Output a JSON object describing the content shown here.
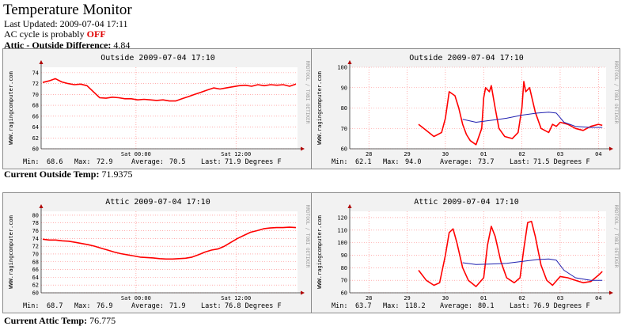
{
  "page": {
    "title": "Temperature Monitor",
    "last_updated_label": "Last Updated:",
    "last_updated": "2009-07-04 17:11",
    "ac_prefix": "AC cycle is probably",
    "ac_status": "OFF",
    "difference_label": "Attic - Outside Difference:",
    "difference_value": "4.84",
    "current_outside_label": "Current Outside Temp:",
    "current_outside_value": "71.9375",
    "current_attic_label": "Current Attic Temp:",
    "current_attic_value": "76.775"
  },
  "colors": {
    "line": "#ff0000",
    "second_line": "#2020b0",
    "grid": "#ff7f7f",
    "frame": "#8c8c8c"
  },
  "graph_labels": {
    "left": "WWW.ragingcomputer.com",
    "right": "RRDTOOL / TOBI OETIKER"
  },
  "chart_data": [
    {
      "type": "line",
      "title": "Outside 2009-07-04 17:10",
      "x_ticks": [
        "Sat 00:00",
        "Sat 12:00"
      ],
      "y_ticks": [
        60,
        62,
        64,
        66,
        68,
        70,
        72,
        74
      ],
      "ylim": [
        60,
        75
      ],
      "grid": true,
      "footer": {
        "min_label": "Min:",
        "min": "68.6",
        "max_label": "Max:",
        "max": "72.9",
        "avg_label": "Average:",
        "avg": "70.5",
        "last_label": "Last:",
        "last": "71.9 Degrees F"
      },
      "series": [
        {
          "values": [
            72.2,
            72.5,
            72.9,
            72.3,
            72.0,
            71.8,
            71.9,
            71.6,
            70.5,
            69.4,
            69.3,
            69.5,
            69.4,
            69.2,
            69.2,
            69.0,
            69.1,
            69.0,
            68.9,
            69.0,
            68.8,
            68.8,
            69.2,
            69.6,
            70.0,
            70.4,
            70.8,
            71.2,
            71.0,
            71.2,
            71.4,
            71.6,
            71.7,
            71.5,
            71.8,
            71.6,
            71.8,
            71.7,
            71.8,
            71.5,
            71.9
          ]
        }
      ]
    },
    {
      "type": "line",
      "title": "Outside 2009-07-04 17:10",
      "x_ticks": [
        "28",
        "29",
        "30",
        "01",
        "02",
        "03",
        "04"
      ],
      "y_ticks": [
        60,
        70,
        80,
        90,
        100
      ],
      "ylim": [
        60,
        100
      ],
      "grid": true,
      "footer": {
        "min_label": "Min:",
        "min": "62.1",
        "max_label": "Max:",
        "max": "94.0",
        "avg_label": "Average:",
        "avg": "73.7",
        "last_label": "Last:",
        "last": "71.5 Degrees F"
      },
      "series": [
        {
          "x": [
            29.3,
            29.5,
            29.7,
            29.9,
            30.0,
            30.1,
            30.25,
            30.35,
            30.45,
            30.55,
            30.65,
            30.8,
            30.95,
            31.0,
            31.05,
            31.15,
            31.2,
            31.3,
            31.4,
            31.55,
            31.75,
            31.9,
            32.0,
            32.05,
            32.1,
            32.2,
            32.35,
            32.5,
            32.7,
            32.8,
            32.9,
            33.0,
            33.2,
            33.4,
            33.6,
            33.8,
            34.0,
            34.1
          ],
          "values": [
            72,
            69,
            66,
            68,
            75,
            88,
            86,
            80,
            72,
            67,
            64,
            62,
            70,
            85,
            90,
            88,
            91,
            80,
            70,
            66,
            65,
            68,
            80,
            93,
            88,
            90,
            78,
            70,
            68,
            72,
            71,
            73,
            72,
            70,
            69,
            71,
            72,
            71.5
          ]
        },
        {
          "x": [
            30.45,
            30.8,
            31.2,
            31.6,
            32.0,
            32.4,
            32.7,
            32.9,
            33.1,
            33.4,
            33.8,
            34.1
          ],
          "values": [
            74.5,
            73,
            74,
            75,
            76.5,
            77.5,
            78,
            77.5,
            73,
            71,
            70.5,
            70.5
          ]
        }
      ]
    },
    {
      "type": "line",
      "title": "Attic 2009-07-04 17:10",
      "x_ticks": [
        "Sat 00:00",
        "Sat 12:00"
      ],
      "y_ticks": [
        60,
        62,
        64,
        66,
        68,
        70,
        72,
        74,
        76,
        78,
        80
      ],
      "ylim": [
        60,
        81
      ],
      "grid": true,
      "footer": {
        "min_label": "Min:",
        "min": "68.7",
        "max_label": "Max:",
        "max": "76.9",
        "avg_label": "Average:",
        "avg": "71.9",
        "last_label": "Last:",
        "last": "76.8 Degrees F"
      },
      "series": [
        {
          "values": [
            73.8,
            73.6,
            73.6,
            73.4,
            73.3,
            73.0,
            72.7,
            72.4,
            72.0,
            71.5,
            71.0,
            70.5,
            70.1,
            69.8,
            69.5,
            69.2,
            69.1,
            69.0,
            68.8,
            68.7,
            68.7,
            68.8,
            68.9,
            69.2,
            69.8,
            70.5,
            71.0,
            71.3,
            72.0,
            73.0,
            74.0,
            74.8,
            75.6,
            76.0,
            76.5,
            76.7,
            76.8,
            76.8,
            76.9,
            76.8
          ]
        }
      ]
    },
    {
      "type": "line",
      "title": "Attic 2009-07-04 17:10",
      "x_ticks": [
        "28",
        "29",
        "30",
        "01",
        "02",
        "03",
        "04"
      ],
      "y_ticks": [
        60,
        70,
        80,
        90,
        100,
        110,
        120
      ],
      "ylim": [
        60,
        125
      ],
      "grid": true,
      "footer": {
        "min_label": "Min:",
        "min": "63.7",
        "max_label": "Max:",
        "max": "118.2",
        "avg_label": "Average:",
        "avg": "80.1",
        "last_label": "Last:",
        "last": "76.9 Degrees F"
      },
      "series": [
        {
          "x": [
            29.3,
            29.5,
            29.7,
            29.85,
            30.0,
            30.1,
            30.2,
            30.3,
            30.45,
            30.6,
            30.8,
            31.0,
            31.1,
            31.2,
            31.3,
            31.45,
            31.6,
            31.8,
            31.95,
            32.05,
            32.15,
            32.25,
            32.35,
            32.5,
            32.65,
            32.8,
            33.0,
            33.2,
            33.4,
            33.6,
            33.8,
            34.0,
            34.1
          ],
          "values": [
            78,
            70,
            66,
            68,
            90,
            108,
            111,
            100,
            80,
            70,
            65,
            72,
            98,
            113,
            105,
            85,
            72,
            68,
            72,
            95,
            116,
            117,
            105,
            82,
            70,
            66,
            73,
            72,
            70,
            68,
            69,
            74,
            77
          ]
        },
        {
          "x": [
            30.45,
            30.8,
            31.2,
            31.6,
            32.0,
            32.4,
            32.7,
            32.9,
            33.1,
            33.4,
            33.8,
            34.1
          ],
          "values": [
            84,
            82.5,
            83,
            83.5,
            85,
            86.5,
            87,
            86,
            78,
            72,
            70,
            70
          ]
        }
      ]
    }
  ]
}
